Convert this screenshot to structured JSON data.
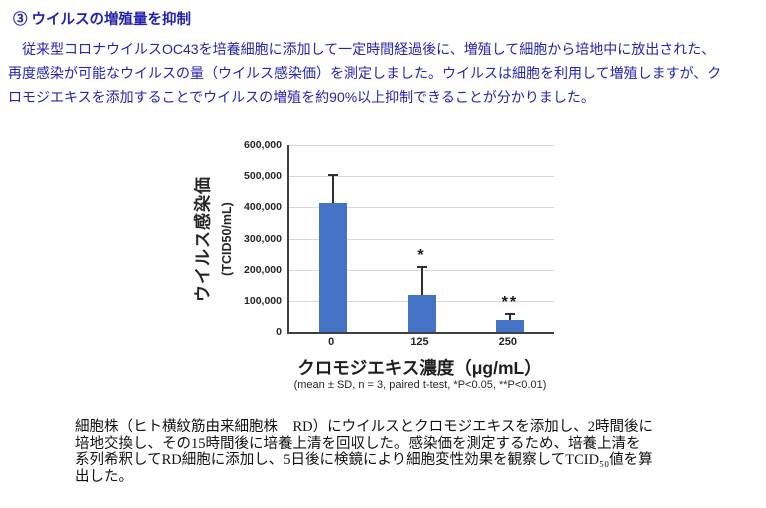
{
  "heading": "③ ウイルスの増殖量を抑制",
  "intro": {
    "lines": [
      "　従来型コロナウイルスOC43を培養細胞に添加して一定時間経過後に、増殖して細胞から培地中に放出された、",
      "再度感染が可能なウイルスの量（ウイルス感染価）を測定しました。ウイルスは細胞を利用して増殖しますが、ク",
      "ロモジエキスを添加することでウイルスの増殖を約90%以上抑制できることが分かりました。"
    ]
  },
  "chart_data": {
    "type": "bar",
    "categories": [
      "0",
      "125",
      "250"
    ],
    "values": [
      415000,
      120000,
      40000
    ],
    "errors": [
      85000,
      87000,
      15000
    ],
    "annotations": [
      "",
      "*",
      "**"
    ],
    "title": "",
    "xlabel": "クロモジエキス濃度（μg/mL）",
    "ylabel": "ウイルス感染価",
    "ylabel_unit": "(TCID50/mL)",
    "ylim": [
      0,
      600000
    ],
    "ytick_step": 100000,
    "yticks": [
      "0",
      "100,000",
      "200,000",
      "300,000",
      "400,000",
      "500,000",
      "600,000"
    ],
    "footnote": "(mean ± SD, n = 3, paired t-test, *P<0.05, **P<0.01)",
    "bar_color": "#4472c4",
    "grid": true,
    "legend": "none"
  },
  "caption": {
    "lines": [
      "細胞株（ヒト横紋筋由来細胞株　RD）にウイルスとクロモジエキスを添加し、2時間後に",
      "培地交換し、その15時間後に培養上清を回収した。感染価を測定するため、培養上清を",
      "系列希釈してRD細胞に添加し、5日後に検鏡により細胞変性効果を観察してTCID₅₀値を算",
      "出した。"
    ]
  }
}
